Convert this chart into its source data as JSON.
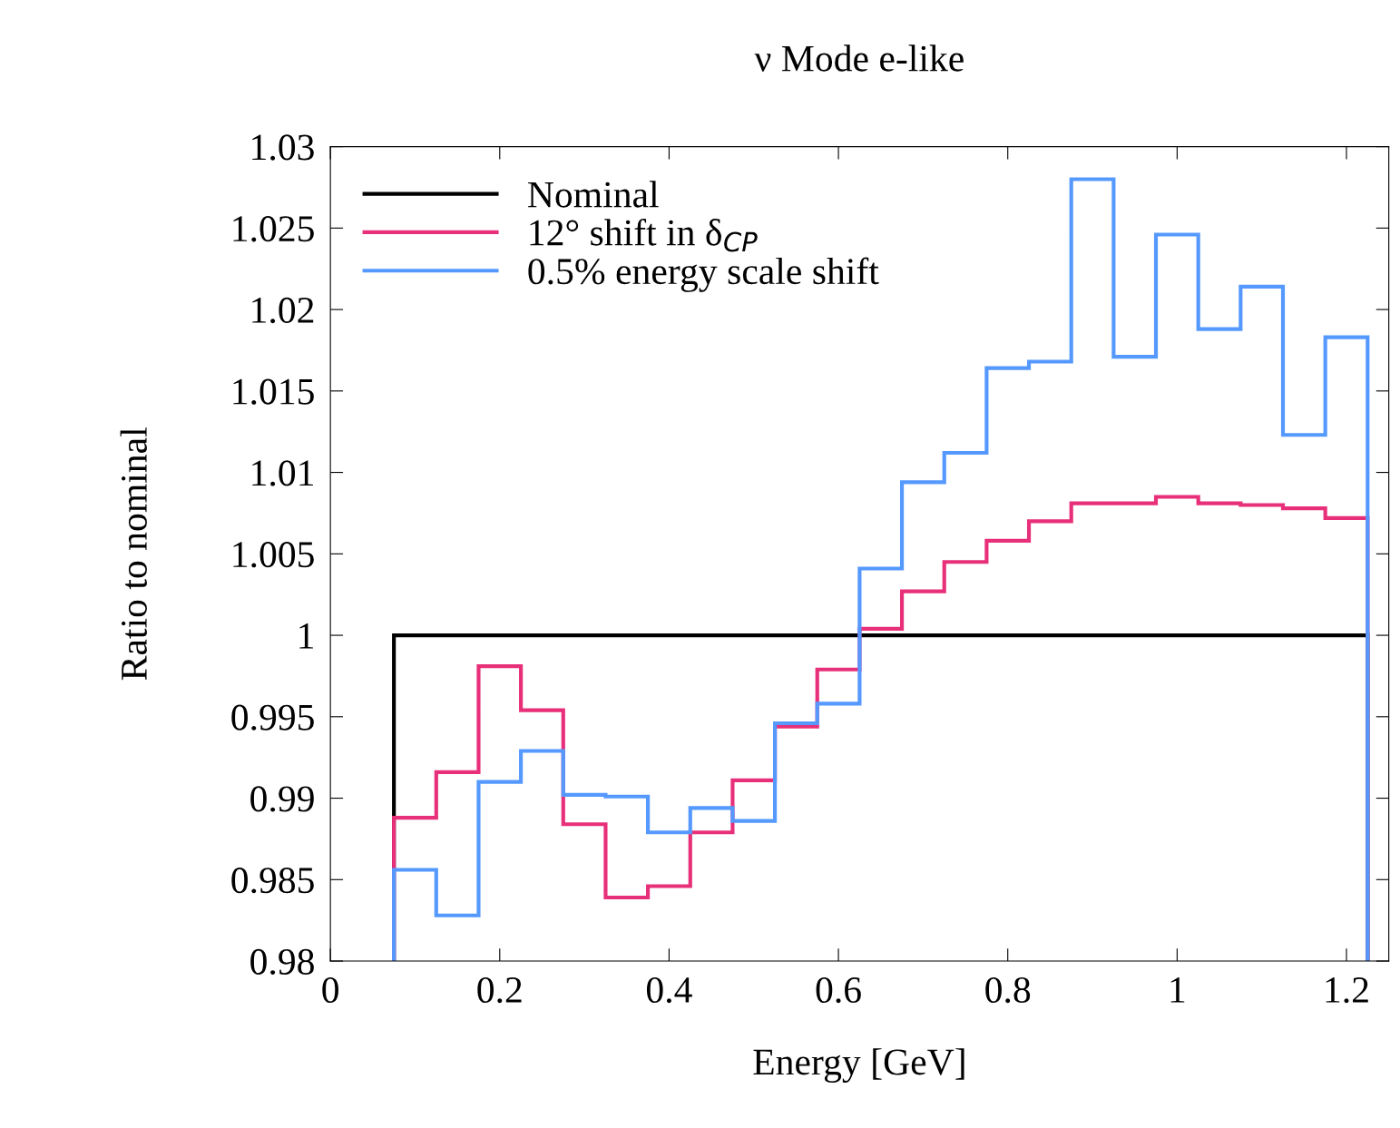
{
  "chart_data": {
    "type": "histogram",
    "title": "ν Mode e-like",
    "xlabel": "Energy [GeV]",
    "ylabel": "Ratio to nominal",
    "bins": [
      0.075,
      0.125,
      0.175,
      0.225,
      0.275,
      0.325,
      0.375,
      0.425,
      0.475,
      0.525,
      0.575,
      0.625,
      0.675,
      0.725,
      0.775,
      0.825,
      0.875,
      0.925,
      0.975,
      1.025,
      1.075,
      1.125,
      1.175,
      1.225
    ],
    "series": [
      {
        "name": "Nominal",
        "color": "#000000",
        "values": [
          1,
          1,
          1,
          1,
          1,
          1,
          1,
          1,
          1,
          1,
          1,
          1,
          1,
          1,
          1,
          1,
          1,
          1,
          1,
          1,
          1,
          1,
          1
        ]
      },
      {
        "name": "12° shift in δ$_{CP}$",
        "color": "#e8307a",
        "values": [
          0.9888,
          0.9916,
          0.9981,
          0.9954,
          0.9884,
          0.9839,
          0.9846,
          0.9879,
          0.9911,
          0.9944,
          0.9979,
          1.0004,
          1.0027,
          1.0045,
          1.0058,
          1.007,
          1.0081,
          1.0081,
          1.0085,
          1.0081,
          1.008,
          1.0078,
          1.0072
        ]
      },
      {
        "name": "0.5% energy scale shift",
        "color": "#5599ff",
        "values": [
          0.9856,
          0.9828,
          0.991,
          0.9929,
          0.9902,
          0.9901,
          0.9879,
          0.9894,
          0.9886,
          0.9946,
          0.9958,
          1.0041,
          1.0094,
          1.0112,
          1.0164,
          1.0168,
          1.028,
          1.0171,
          1.0246,
          1.0188,
          1.0214,
          1.0123,
          1.0183
        ]
      }
    ],
    "xlim": [
      0,
      1.25
    ],
    "xticks": [
      0,
      0.2,
      0.4,
      0.6,
      0.8,
      1,
      1.2
    ],
    "ylim": [
      0.98,
      1.03
    ],
    "yticks": [
      0.98,
      0.985,
      0.99,
      0.995,
      1,
      1.005,
      1.01,
      1.015,
      1.02,
      1.025,
      1.03
    ],
    "legend": "top left",
    "grid": false
  }
}
